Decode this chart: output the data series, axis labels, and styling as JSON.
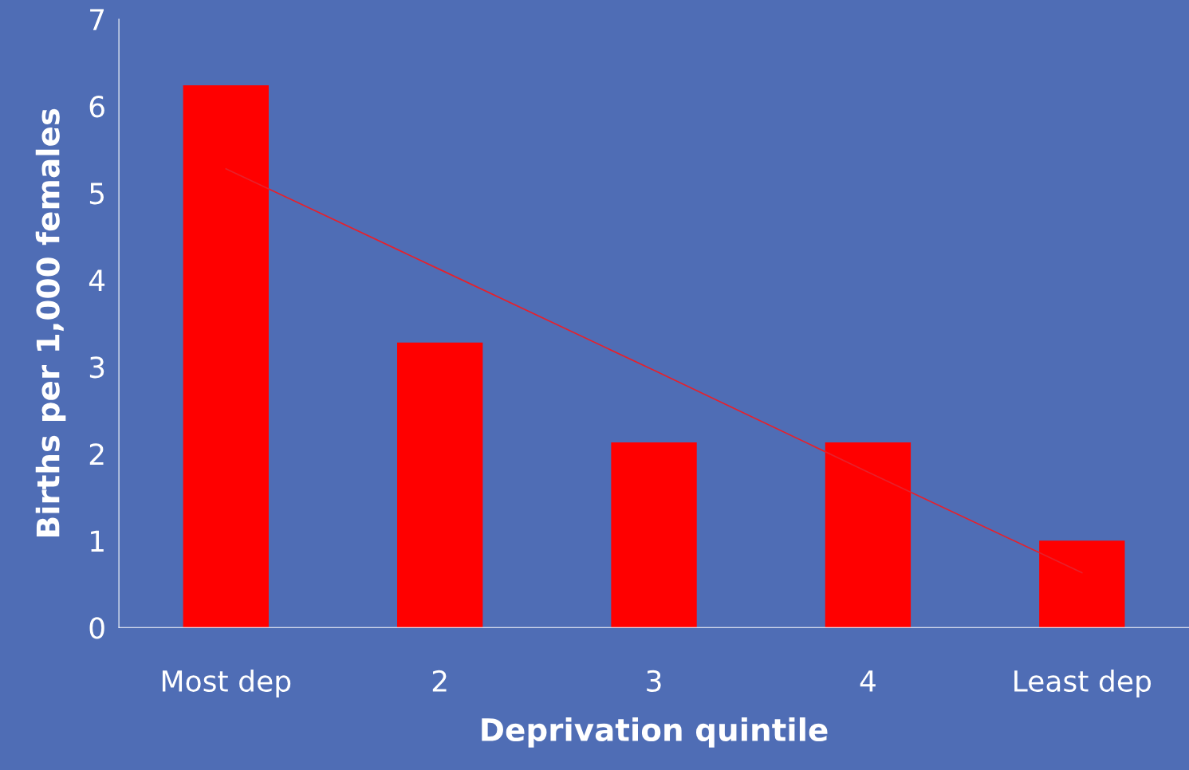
{
  "chart_data": {
    "type": "bar",
    "xlabel": "Deprivation quintile",
    "ylabel": "Births per 1,000 females",
    "categories": [
      "Most dep",
      "2",
      "3",
      "4",
      "Least dep"
    ],
    "series": [
      {
        "color": "#ff0000",
        "values": [
          6.24,
          3.28,
          2.13,
          2.13,
          1.0
        ]
      },
      {
        "type": "line",
        "color": "#e8202a",
        "values": [
          5.28,
          4.12,
          2.96,
          1.79,
          0.63
        ]
      }
    ],
    "ylim": [
      0,
      7
    ],
    "yticks": [
      0,
      1,
      2,
      3,
      4,
      5,
      6,
      7
    ],
    "grid": false,
    "legend": false
  }
}
